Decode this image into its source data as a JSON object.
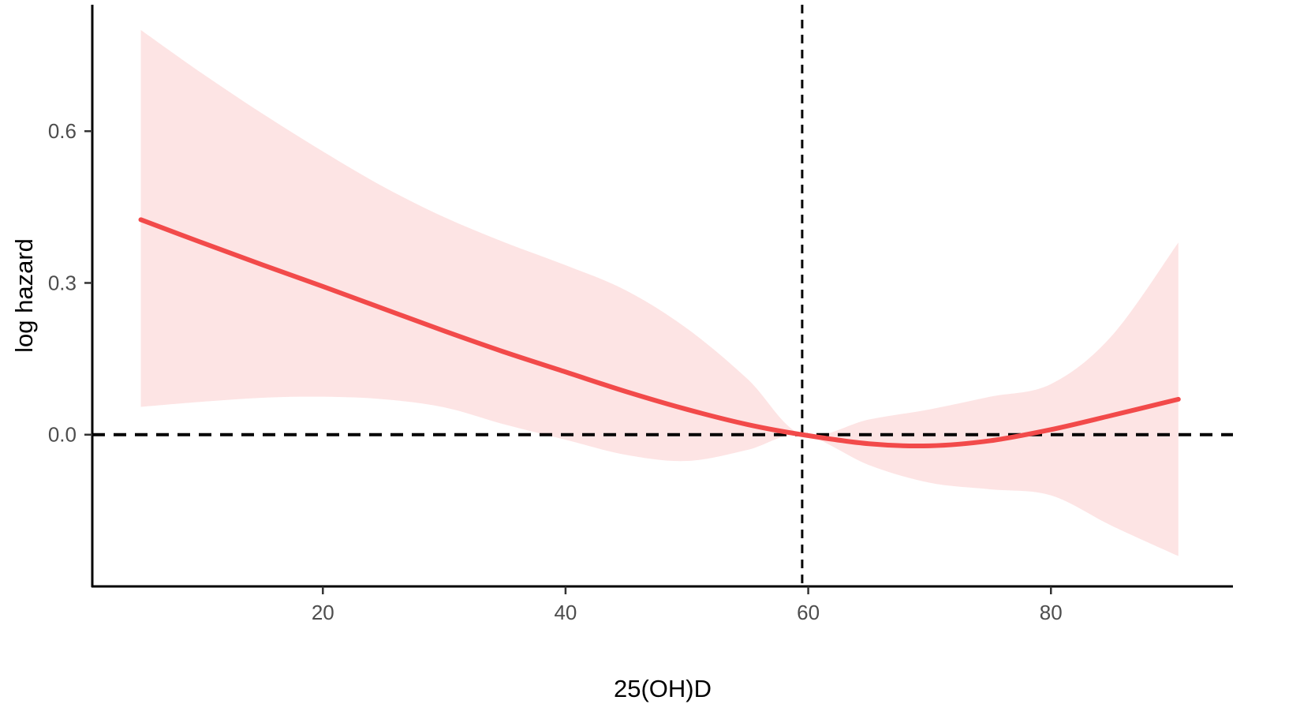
{
  "chart_data": {
    "type": "line",
    "title": "",
    "xlabel": "25(OH)D",
    "ylabel": "log hazard",
    "xlim": [
      1,
      95
    ],
    "ylim": [
      -0.3,
      0.85
    ],
    "x_ticks": [
      20,
      40,
      60,
      80
    ],
    "x_tick_labels": [
      "20",
      "40",
      "60",
      "80"
    ],
    "y_ticks": [
      0.0,
      0.3,
      0.6
    ],
    "y_tick_labels": [
      "0.0",
      "0.3",
      "0.6"
    ],
    "grid": false,
    "legend": "none",
    "reference_lines": {
      "horizontal_y": 0.0,
      "vertical_x": 59.5,
      "style": "dashed"
    },
    "colors": {
      "line": "#f24a4a",
      "band": "#fde4e4",
      "axis": "#000000",
      "reference": "#000000"
    },
    "series": [
      {
        "values": [
          {
            "x": 5,
            "y": 0.425
          },
          {
            "x": 10,
            "y": 0.38
          },
          {
            "x": 15,
            "y": 0.336
          },
          {
            "x": 20,
            "y": 0.293
          },
          {
            "x": 25,
            "y": 0.249
          },
          {
            "x": 30,
            "y": 0.205
          },
          {
            "x": 35,
            "y": 0.163
          },
          {
            "x": 40,
            "y": 0.124
          },
          {
            "x": 45,
            "y": 0.085
          },
          {
            "x": 50,
            "y": 0.05
          },
          {
            "x": 55,
            "y": 0.02
          },
          {
            "x": 59.5,
            "y": 0.0
          },
          {
            "x": 65,
            "y": -0.018
          },
          {
            "x": 70,
            "y": -0.022
          },
          {
            "x": 75,
            "y": -0.012
          },
          {
            "x": 80,
            "y": 0.01
          },
          {
            "x": 85,
            "y": 0.038
          },
          {
            "x": 90.5,
            "y": 0.07
          }
        ]
      }
    ],
    "confidence_band": [
      {
        "x": 5,
        "lower": 0.055,
        "upper": 0.8
      },
      {
        "x": 10,
        "lower": 0.065,
        "upper": 0.715
      },
      {
        "x": 15,
        "lower": 0.073,
        "upper": 0.635
      },
      {
        "x": 20,
        "lower": 0.075,
        "upper": 0.56
      },
      {
        "x": 25,
        "lower": 0.07,
        "upper": 0.49
      },
      {
        "x": 30,
        "lower": 0.054,
        "upper": 0.43
      },
      {
        "x": 35,
        "lower": 0.02,
        "upper": 0.38
      },
      {
        "x": 40,
        "lower": -0.01,
        "upper": 0.335
      },
      {
        "x": 45,
        "lower": -0.04,
        "upper": 0.285
      },
      {
        "x": 50,
        "lower": -0.052,
        "upper": 0.21
      },
      {
        "x": 55,
        "lower": -0.03,
        "upper": 0.11
      },
      {
        "x": 59.5,
        "lower": 0.0,
        "upper": 0.0
      },
      {
        "x": 65,
        "lower": -0.06,
        "upper": 0.03
      },
      {
        "x": 70,
        "lower": -0.095,
        "upper": 0.05
      },
      {
        "x": 75,
        "lower": -0.108,
        "upper": 0.075
      },
      {
        "x": 80,
        "lower": -0.12,
        "upper": 0.1
      },
      {
        "x": 85,
        "lower": -0.18,
        "upper": 0.195
      },
      {
        "x": 90.5,
        "lower": -0.24,
        "upper": 0.38
      }
    ]
  }
}
